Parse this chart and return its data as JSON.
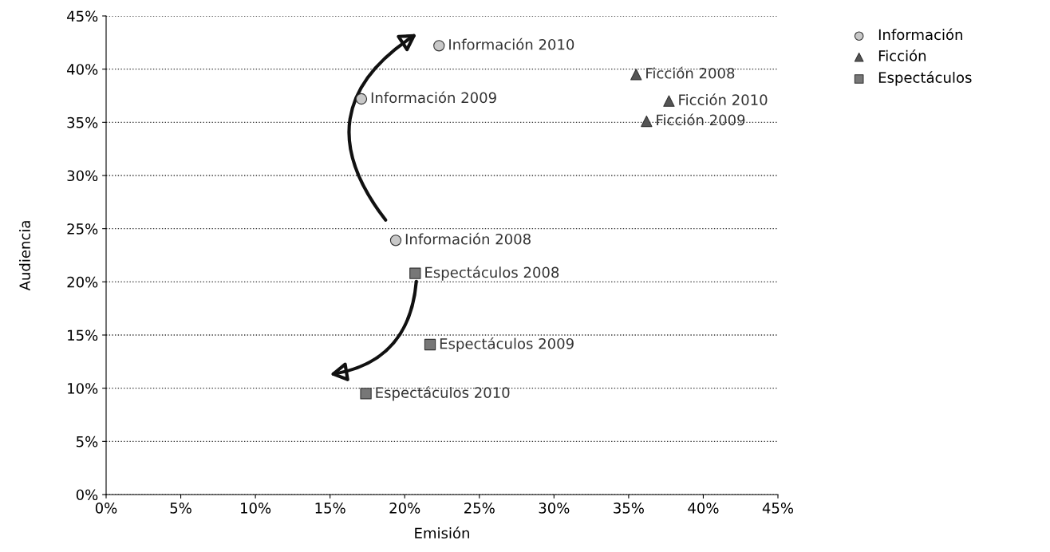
{
  "chart_data": {
    "type": "scatter",
    "xlabel": "Emisión",
    "ylabel": "Audiencia",
    "xlim": [
      0,
      45
    ],
    "ylim": [
      0,
      45
    ],
    "xticks": [
      {
        "value": 0,
        "label": "0%"
      },
      {
        "value": 5,
        "label": "5%"
      },
      {
        "value": 10,
        "label": "10%"
      },
      {
        "value": 15,
        "label": "15%"
      },
      {
        "value": 20,
        "label": "20%"
      },
      {
        "value": 25,
        "label": "25%"
      },
      {
        "value": 30,
        "label": "30%"
      },
      {
        "value": 35,
        "label": "35%"
      },
      {
        "value": 40,
        "label": "40%"
      },
      {
        "value": 45,
        "label": "45%"
      }
    ],
    "yticks": [
      {
        "value": 0,
        "label": "0%"
      },
      {
        "value": 5,
        "label": "5%"
      },
      {
        "value": 10,
        "label": "10%"
      },
      {
        "value": 15,
        "label": "15%"
      },
      {
        "value": 20,
        "label": "20%"
      },
      {
        "value": 25,
        "label": "25%"
      },
      {
        "value": 30,
        "label": "30%"
      },
      {
        "value": 35,
        "label": "35%"
      },
      {
        "value": 40,
        "label": "40%"
      },
      {
        "value": 45,
        "label": "45%"
      }
    ],
    "grid": "y",
    "legend": "top right",
    "series": [
      {
        "name": "Información",
        "color": "#c8c8c8",
        "marker": "circle",
        "x": [
          19.4,
          17.1,
          22.3
        ],
        "values": [
          23.9,
          37.2,
          42.2
        ]
      },
      {
        "name": "Ficción",
        "color": "#555555",
        "marker": "triangle",
        "x": [
          35.5,
          36.2,
          37.7
        ],
        "values": [
          39.5,
          35.1,
          37.0
        ]
      },
      {
        "name": "Espectáculos",
        "color": "#777777",
        "marker": "square",
        "x": [
          20.7,
          21.7,
          17.4
        ],
        "values": [
          20.8,
          14.1,
          9.5
        ]
      }
    ],
    "annotations": [
      {
        "text": "Información 2008",
        "x": 19.4,
        "y": 23.9
      },
      {
        "text": "Información 2009",
        "x": 17.1,
        "y": 37.2
      },
      {
        "text": "Información 2010",
        "x": 22.3,
        "y": 42.2
      },
      {
        "text": "Ficción 2008",
        "x": 35.5,
        "y": 39.5
      },
      {
        "text": "Ficción 2009",
        "x": 36.2,
        "y": 35.1
      },
      {
        "text": "Ficción 2010",
        "x": 37.7,
        "y": 37.0
      },
      {
        "text": "Espectáculos 2008",
        "x": 20.7,
        "y": 20.8
      },
      {
        "text": "Espectáculos 2009",
        "x": 21.7,
        "y": 14.1
      },
      {
        "text": "Espectáculos 2010",
        "x": 17.4,
        "y": 9.5
      }
    ]
  }
}
